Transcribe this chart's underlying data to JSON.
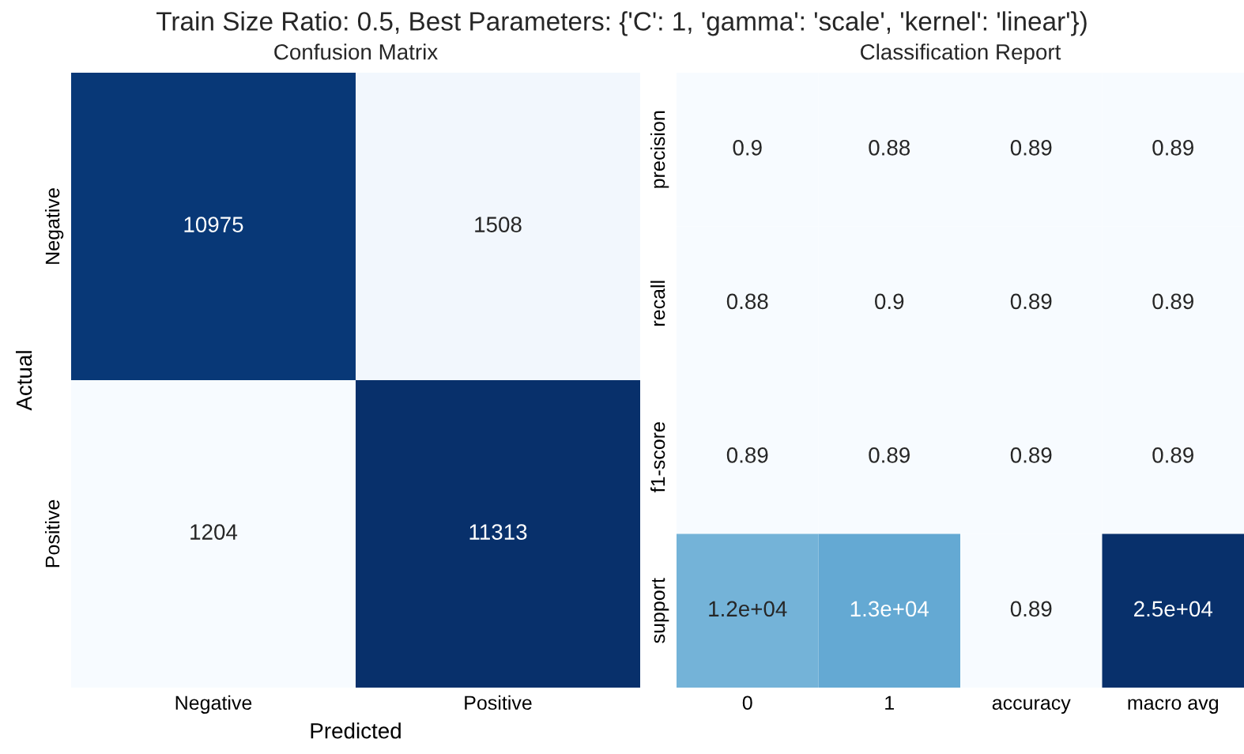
{
  "chart_data": [
    {
      "type": "heatmap",
      "title": "Confusion Matrix",
      "xlabel": "Predicted",
      "ylabel": "Actual",
      "categories": [
        "Negative",
        "Positive"
      ],
      "y_categories": [
        "Negative",
        "Positive"
      ],
      "cells": [
        [
          10975,
          1508
        ],
        [
          1204,
          11313
        ]
      ],
      "data_labels": true,
      "grid": false
    },
    {
      "type": "heatmap",
      "title": "Classification Report",
      "categories": [
        "0",
        "1",
        "accuracy",
        "macro avg"
      ],
      "y_categories": [
        "precision",
        "recall",
        "f1-score",
        "support"
      ],
      "cells": [
        [
          0.9,
          0.88,
          0.89,
          0.89
        ],
        [
          0.88,
          0.9,
          0.89,
          0.89
        ],
        [
          0.89,
          0.89,
          0.89,
          0.89
        ],
        [
          12000,
          13000,
          0.89,
          25000
        ]
      ],
      "cell_labels": [
        [
          "0.9",
          "0.88",
          "0.89",
          "0.89"
        ],
        [
          "0.88",
          "0.9",
          "0.89",
          "0.89"
        ],
        [
          "0.89",
          "0.89",
          "0.89",
          "0.89"
        ],
        [
          "1.2e+04",
          "1.3e+04",
          "0.89",
          "2.5e+04"
        ]
      ],
      "grid": false
    },
    {
      "type": "other",
      "title": "Train Size Ratio: 0.5, Best Parameters: {'C': 1, 'gamma': 'scale', 'kernel': 'linear'})"
    }
  ]
}
